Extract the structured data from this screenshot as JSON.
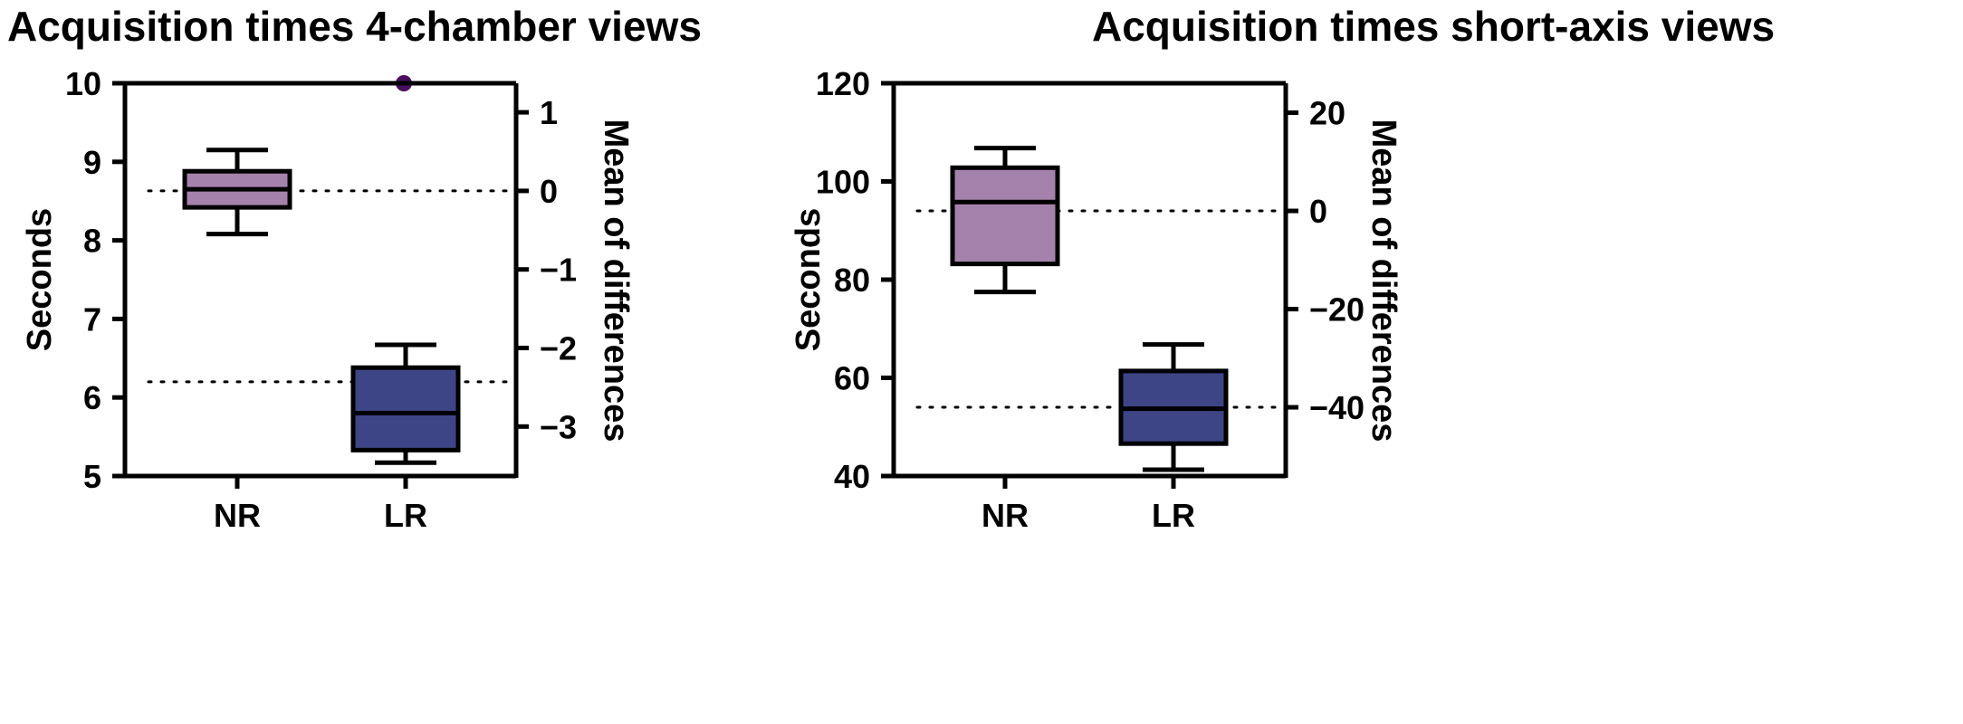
{
  "chart_data": [
    {
      "type": "box",
      "title": "Acquisition times 4-chamber views",
      "ylabel": "Seconds",
      "y2label": "Mean of differences",
      "ylim": [
        5,
        10
      ],
      "yticks": [
        5,
        6,
        7,
        8,
        9,
        10
      ],
      "y2lim": [
        -3.63,
        1.37
      ],
      "y2ticks": [
        -3,
        -2,
        -1,
        0,
        1
      ],
      "y2_zero_at_y": 8.63,
      "categories": [
        "NR",
        "LR"
      ],
      "boxes": [
        {
          "name": "NR",
          "min": 8.08,
          "q1": 8.42,
          "median": 8.65,
          "q3": 8.88,
          "max": 9.15,
          "color": "#a582ab"
        },
        {
          "name": "LR",
          "min": 5.17,
          "q1": 5.33,
          "median": 5.8,
          "q3": 6.38,
          "max": 6.67,
          "color": "#3e4586"
        }
      ],
      "reference_lines": [
        {
          "y2": 0
        },
        {
          "y2": -2.43
        }
      ],
      "outliers": [
        {
          "x": "LR",
          "y": 10.0,
          "color": "#4a0f5e"
        }
      ]
    },
    {
      "type": "box",
      "title": "Acquisition times short-axis views",
      "ylabel": "Seconds",
      "y2label": "Mean of differences",
      "ylim": [
        40,
        120
      ],
      "yticks": [
        40,
        60,
        80,
        100,
        120
      ],
      "y2lim": [
        -54,
        26
      ],
      "y2ticks": [
        -40,
        -20,
        0,
        20
      ],
      "y2_zero_at_y": 94,
      "categories": [
        "NR",
        "LR"
      ],
      "boxes": [
        {
          "name": "NR",
          "min": 77.5,
          "q1": 83.2,
          "median": 95.8,
          "q3": 102.8,
          "max": 106.8,
          "color": "#a582ab"
        },
        {
          "name": "LR",
          "min": 41.3,
          "q1": 46.6,
          "median": 53.7,
          "q3": 61.4,
          "max": 66.8,
          "color": "#3e4586"
        }
      ],
      "reference_lines": [
        {
          "y2": 0
        },
        {
          "y2": -40
        }
      ],
      "outliers": []
    }
  ]
}
